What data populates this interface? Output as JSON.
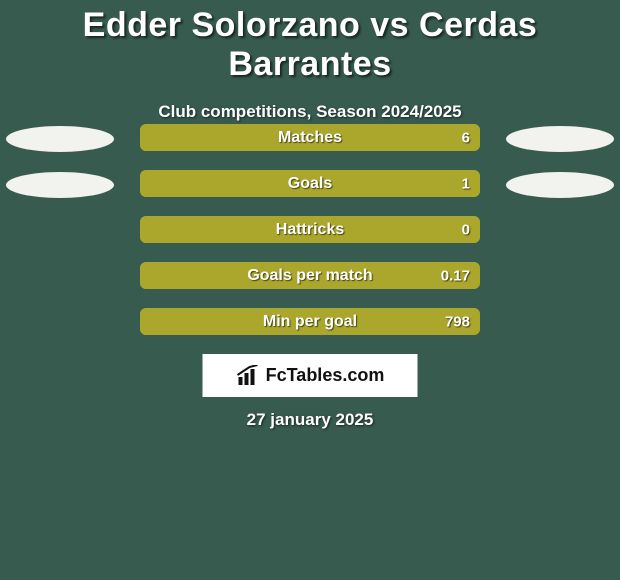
{
  "background_color": "#385b4f",
  "title": "Edder Solorzano vs Cerdas Barrantes",
  "title_fontsize": 34,
  "title_color": "#ffffff",
  "subtitle": "Club competitions, Season 2024/2025",
  "subtitle_fontsize": 17,
  "subtitle_color": "#ffffff",
  "ellipse_left_color": "#f2f2ee",
  "ellipse_right_color": "#f2f2ee",
  "bar_track_color": "#aaa72c",
  "bar_fill_color": "#aaa72c",
  "bar_text_color": "#ffffff",
  "bar_text_fontsize": 16,
  "rows": [
    {
      "label": "Matches",
      "value_text": "6",
      "fill_pct": 100,
      "show_ellipses": true
    },
    {
      "label": "Goals",
      "value_text": "1",
      "fill_pct": 100,
      "show_ellipses": true
    },
    {
      "label": "Hattricks",
      "value_text": "0",
      "fill_pct": 100,
      "show_ellipses": false
    },
    {
      "label": "Goals per match",
      "value_text": "0.17",
      "fill_pct": 100,
      "show_ellipses": false
    },
    {
      "label": "Min per goal",
      "value_text": "798",
      "fill_pct": 100,
      "show_ellipses": false
    }
  ],
  "brand_text": "FcTables.com",
  "brand_box_bg": "#ffffff",
  "brand_text_color": "#111111",
  "date": "27 january 2025",
  "date_fontsize": 17,
  "date_color": "#ffffff"
}
